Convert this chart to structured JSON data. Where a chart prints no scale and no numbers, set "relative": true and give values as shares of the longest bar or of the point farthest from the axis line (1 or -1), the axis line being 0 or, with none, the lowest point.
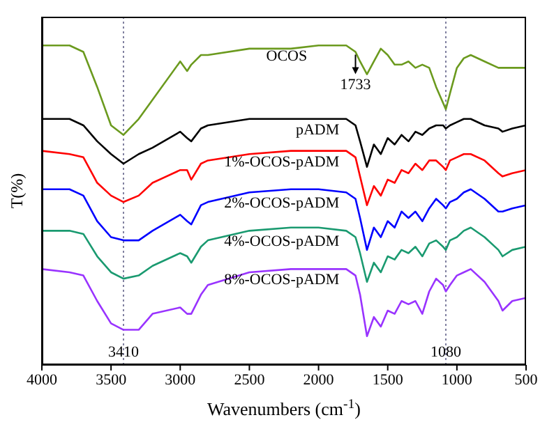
{
  "chart_data": {
    "type": "line",
    "relative": true,
    "xlabel": "Wavenumbers (cm$^{-1}$)",
    "ylabel": "T(%)",
    "xlim": [
      4000,
      500
    ],
    "xticks": [
      4000,
      3500,
      3000,
      2500,
      2000,
      1500,
      1000,
      500
    ],
    "x": [
      4000,
      3800,
      3700,
      3600,
      3500,
      3410,
      3300,
      3200,
      3000,
      2950,
      2920,
      2850,
      2800,
      2500,
      2200,
      2000,
      1800,
      1733,
      1700,
      1650,
      1600,
      1550,
      1500,
      1450,
      1400,
      1350,
      1300,
      1250,
      1200,
      1150,
      1100,
      1080,
      1050,
      1000,
      950,
      900,
      800,
      700,
      670,
      600,
      500
    ],
    "series": [
      {
        "name": "OCOS",
        "color": "#6b9a1e",
        "values": [
          1,
          1,
          0.98,
          0.87,
          0.75,
          0.72,
          0.77,
          0.83,
          0.95,
          0.92,
          0.94,
          0.97,
          0.97,
          0.99,
          0.99,
          1,
          1,
          0.98,
          0.95,
          0.91,
          0.95,
          0.99,
          0.97,
          0.94,
          0.94,
          0.95,
          0.93,
          0.94,
          0.93,
          0.87,
          0.82,
          0.8,
          0.85,
          0.93,
          0.96,
          0.97,
          0.95,
          0.93,
          0.93,
          0.93,
          0.93
        ]
      },
      {
        "name": "pADM",
        "color": "#000000",
        "values": [
          0.77,
          0.77,
          0.75,
          0.7,
          0.66,
          0.63,
          0.66,
          0.68,
          0.73,
          0.71,
          0.7,
          0.74,
          0.75,
          0.77,
          0.77,
          0.77,
          0.77,
          0.75,
          0.7,
          0.62,
          0.69,
          0.66,
          0.71,
          0.69,
          0.72,
          0.7,
          0.73,
          0.72,
          0.74,
          0.75,
          0.75,
          0.74,
          0.75,
          0.76,
          0.77,
          0.77,
          0.75,
          0.74,
          0.73,
          0.74,
          0.75
        ]
      },
      {
        "name": "1%-OCOS-pADM",
        "color": "#ff0000",
        "values": [
          0.67,
          0.66,
          0.65,
          0.57,
          0.53,
          0.51,
          0.53,
          0.57,
          0.61,
          0.61,
          0.58,
          0.63,
          0.64,
          0.66,
          0.67,
          0.67,
          0.67,
          0.65,
          0.59,
          0.5,
          0.56,
          0.53,
          0.58,
          0.57,
          0.61,
          0.6,
          0.63,
          0.61,
          0.64,
          0.64,
          0.62,
          0.61,
          0.64,
          0.65,
          0.66,
          0.66,
          0.64,
          0.6,
          0.59,
          0.6,
          0.61
        ]
      },
      {
        "name": "2%-OCOS-pADM",
        "color": "#0000ff",
        "values": [
          0.55,
          0.55,
          0.53,
          0.45,
          0.4,
          0.39,
          0.39,
          0.42,
          0.47,
          0.45,
          0.44,
          0.5,
          0.51,
          0.54,
          0.55,
          0.55,
          0.54,
          0.52,
          0.46,
          0.36,
          0.43,
          0.4,
          0.45,
          0.43,
          0.48,
          0.46,
          0.48,
          0.45,
          0.49,
          0.52,
          0.5,
          0.49,
          0.51,
          0.52,
          0.54,
          0.55,
          0.52,
          0.48,
          0.48,
          0.49,
          0.5
        ]
      },
      {
        "name": "4%-OCOS-pADM",
        "color": "#1a9a70",
        "values": [
          0.42,
          0.42,
          0.41,
          0.34,
          0.29,
          0.27,
          0.28,
          0.31,
          0.35,
          0.34,
          0.32,
          0.37,
          0.39,
          0.42,
          0.43,
          0.43,
          0.42,
          0.4,
          0.35,
          0.26,
          0.32,
          0.29,
          0.34,
          0.33,
          0.36,
          0.35,
          0.37,
          0.34,
          0.38,
          0.39,
          0.37,
          0.36,
          0.39,
          0.4,
          0.42,
          0.43,
          0.4,
          0.36,
          0.34,
          0.36,
          0.37
        ]
      },
      {
        "name": "8%-OCOS-pADM",
        "color": "#9933ff",
        "values": [
          0.3,
          0.29,
          0.28,
          0.2,
          0.13,
          0.11,
          0.11,
          0.16,
          0.18,
          0.16,
          0.16,
          0.22,
          0.25,
          0.29,
          0.3,
          0.3,
          0.3,
          0.28,
          0.22,
          0.09,
          0.15,
          0.12,
          0.17,
          0.16,
          0.2,
          0.19,
          0.2,
          0.16,
          0.23,
          0.27,
          0.25,
          0.23,
          0.25,
          0.28,
          0.29,
          0.3,
          0.26,
          0.2,
          0.17,
          0.2,
          0.21
        ]
      }
    ],
    "ref_lines": [
      {
        "axis": "x",
        "value": 3410,
        "label": "3410",
        "color": "#8080a0",
        "line_style": "dotted"
      },
      {
        "axis": "x",
        "value": 1080,
        "label": "1080",
        "color": "#8080a0",
        "line_style": "dotted"
      }
    ],
    "annotations": [
      {
        "text": "1733",
        "x": 1733,
        "y": 0.98
      }
    ]
  }
}
